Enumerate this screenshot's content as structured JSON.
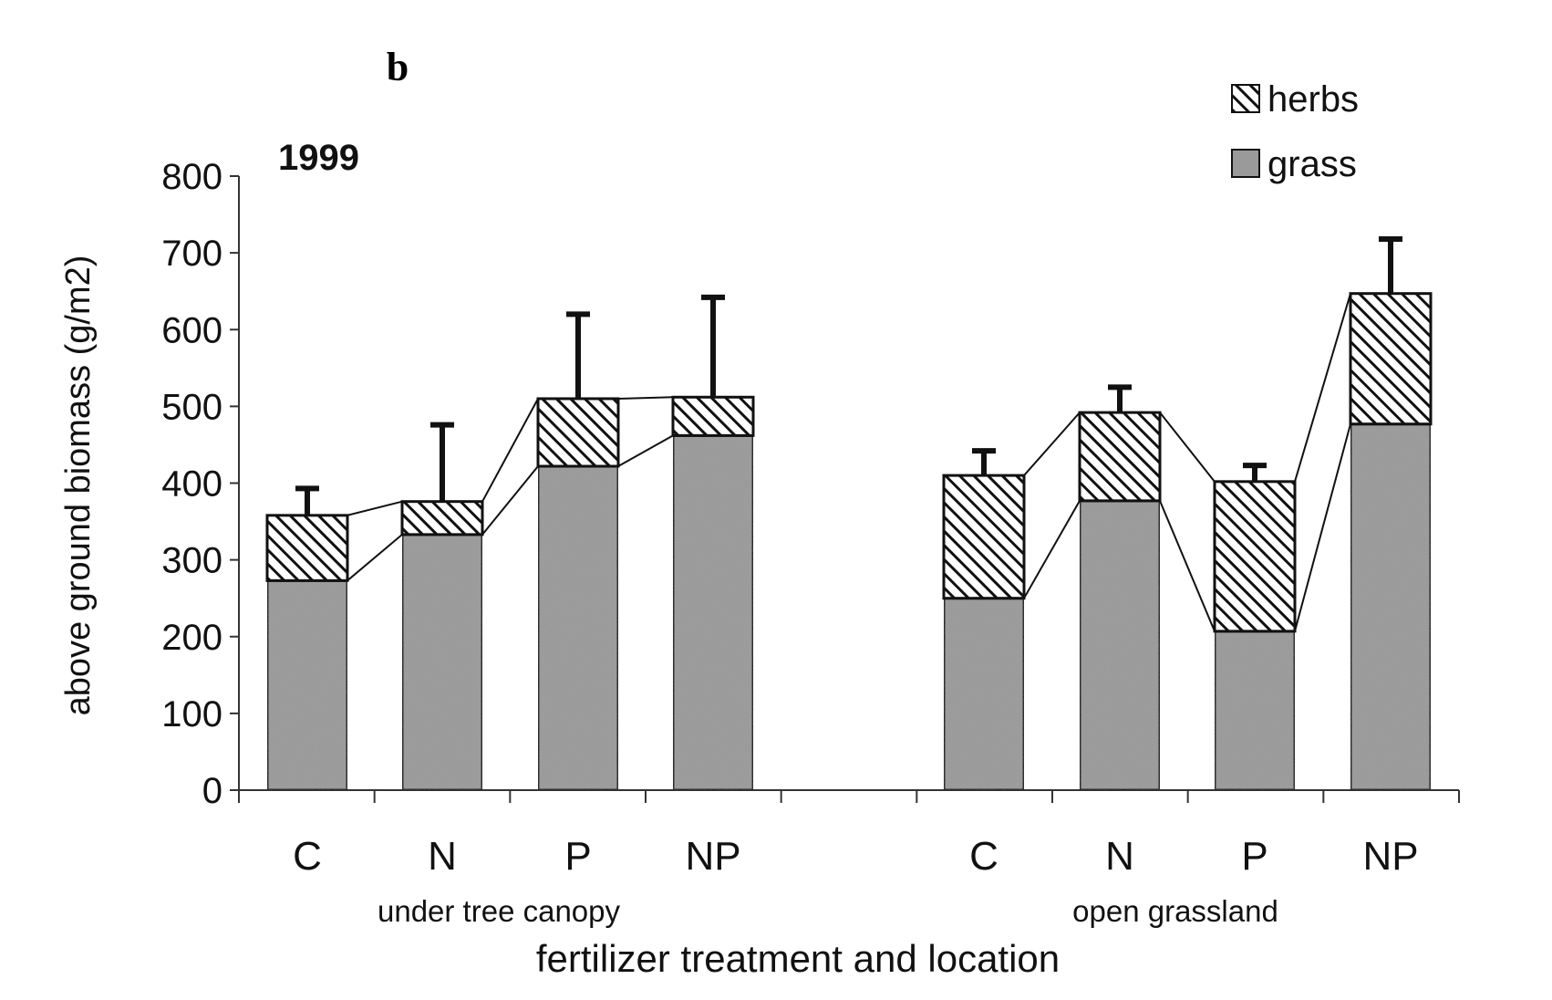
{
  "chart_data": {
    "type": "bar",
    "stacked": true,
    "panel_label": "b",
    "title": "1999",
    "ylabel": "above ground biomass (g/m2)",
    "xlabel": "fertilizer treatment and location",
    "ylim": [
      0,
      800
    ],
    "yticks": [
      0,
      100,
      200,
      300,
      400,
      500,
      600,
      700,
      800
    ],
    "ytick_labels": [
      "0",
      "100",
      "200",
      "300",
      "400",
      "500",
      "600",
      "700",
      "800"
    ],
    "legend_position": "top-right",
    "groups": [
      {
        "name": "under tree canopy",
        "categories": [
          "C",
          "N",
          "P",
          "NP"
        ]
      },
      {
        "name": "open grassland",
        "categories": [
          "C",
          "N",
          "P",
          "NP"
        ]
      }
    ],
    "categories": [
      "C",
      "N",
      "P",
      "NP",
      "C",
      "N",
      "P",
      "NP"
    ],
    "series": [
      {
        "name": "grass",
        "pattern": "solid-gray",
        "values": [
          273,
          333,
          422,
          462,
          250,
          377,
          207,
          477
        ]
      },
      {
        "name": "herbs",
        "pattern": "diagonal-hatch",
        "values": [
          85,
          43,
          88,
          50,
          160,
          115,
          195,
          170
        ]
      }
    ],
    "totals": [
      358,
      376,
      510,
      512,
      410,
      492,
      402,
      647
    ],
    "error_upper": [
      393,
      476,
      620,
      642,
      442,
      525,
      423,
      718
    ],
    "connector_lines": "connect grass tops and bar tops of adjacent bars within each location group"
  },
  "colors": {
    "grass_fill": "#9a9a9a",
    "hatch_line": "#111111",
    "axis": "#333333",
    "bar_outline": "#111111"
  }
}
